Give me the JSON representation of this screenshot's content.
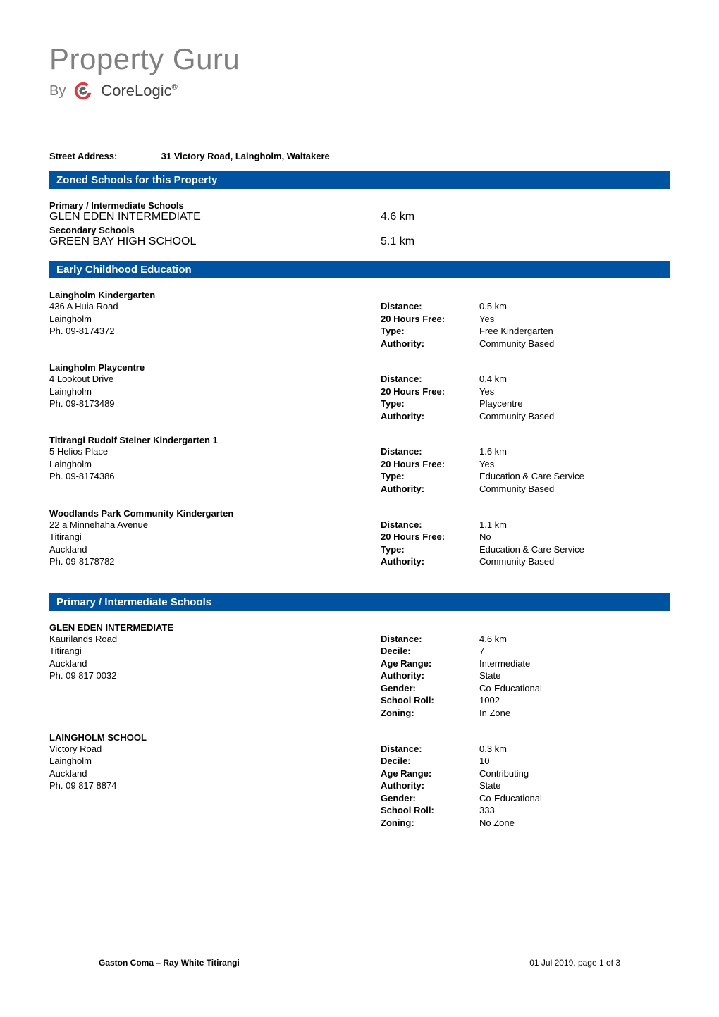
{
  "logo": {
    "main": "Property Guru",
    "by": "By",
    "brand": "CoreLogic",
    "brand_suffix": "®",
    "swirl_colors": {
      "outer": "#e03a3e",
      "inner": "#5d6770"
    }
  },
  "street_address": {
    "label": "Street Address:",
    "value": "31 Victory Road, Laingholm, Waitakere"
  },
  "sections": {
    "zoned": "Zoned Schools for this Property",
    "ece": "Early Childhood Education",
    "primary": "Primary / Intermediate Schools"
  },
  "zoned": {
    "groups": [
      {
        "title": "Primary / Intermediate Schools",
        "rows": [
          {
            "name": "GLEN EDEN INTERMEDIATE",
            "dist": "4.6 km"
          }
        ]
      },
      {
        "title": "Secondary Schools",
        "rows": [
          {
            "name": "GREEN BAY HIGH SCHOOL",
            "dist": "5.1 km"
          }
        ]
      }
    ]
  },
  "ece": [
    {
      "name": "Laingholm Kindergarten",
      "addr": [
        "436 A Huia Road",
        "Laingholm",
        "Ph. 09-8174372"
      ],
      "kv": [
        {
          "k": "Distance:",
          "v": "0.5 km"
        },
        {
          "k": "20 Hours Free:",
          "v": "Yes"
        },
        {
          "k": "Type:",
          "v": "Free Kindergarten"
        },
        {
          "k": "Authority:",
          "v": "Community Based"
        }
      ]
    },
    {
      "name": "Laingholm Playcentre",
      "addr": [
        "4 Lookout Drive",
        "Laingholm",
        "Ph. 09-8173489"
      ],
      "kv": [
        {
          "k": "Distance:",
          "v": "0.4 km"
        },
        {
          "k": "20 Hours Free:",
          "v": "Yes"
        },
        {
          "k": "Type:",
          "v": "Playcentre"
        },
        {
          "k": "Authority:",
          "v": "Community Based"
        }
      ]
    },
    {
      "name": "Titirangi Rudolf Steiner Kindergarten 1",
      "addr": [
        "5 Helios Place",
        "Laingholm",
        "Ph. 09-8174386"
      ],
      "kv": [
        {
          "k": "Distance:",
          "v": "1.6 km"
        },
        {
          "k": "20 Hours Free:",
          "v": "Yes"
        },
        {
          "k": "Type:",
          "v": "Education & Care Service"
        },
        {
          "k": "Authority:",
          "v": "Community Based"
        }
      ]
    },
    {
      "name": "Woodlands Park Community Kindergarten",
      "addr": [
        "22 a Minnehaha Avenue",
        "Titirangi",
        "Auckland",
        "Ph. 09-8178782"
      ],
      "kv": [
        {
          "k": "Distance:",
          "v": "1.1 km"
        },
        {
          "k": "20 Hours Free:",
          "v": "No"
        },
        {
          "k": "Type:",
          "v": "Education & Care Service"
        },
        {
          "k": "Authority:",
          "v": "Community Based"
        }
      ]
    }
  ],
  "primary_schools": [
    {
      "name": "GLEN EDEN INTERMEDIATE",
      "addr": [
        "Kaurilands Road",
        "Titirangi",
        "Auckland",
        "Ph. 09 817 0032"
      ],
      "kv": [
        {
          "k": "Distance:",
          "v": "4.6 km"
        },
        {
          "k": "Decile:",
          "v": "7"
        },
        {
          "k": "Age Range:",
          "v": "Intermediate"
        },
        {
          "k": "Authority:",
          "v": "State"
        },
        {
          "k": "Gender:",
          "v": "Co-Educational"
        },
        {
          "k": "School Roll:",
          "v": "1002"
        },
        {
          "k": "Zoning:",
          "v": "In Zone"
        }
      ]
    },
    {
      "name": "LAINGHOLM SCHOOL",
      "addr": [
        "Victory Road",
        "Laingholm",
        "Auckland",
        "Ph. 09 817 8874"
      ],
      "kv": [
        {
          "k": "Distance:",
          "v": "0.3 km"
        },
        {
          "k": "Decile:",
          "v": "10"
        },
        {
          "k": "Age Range:",
          "v": "Contributing"
        },
        {
          "k": "Authority:",
          "v": "State"
        },
        {
          "k": "Gender:",
          "v": "Co-Educational"
        },
        {
          "k": "School Roll:",
          "v": "333"
        },
        {
          "k": "Zoning:",
          "v": "No Zone"
        }
      ]
    }
  ],
  "footer": {
    "left": "Gaston Coma – Ray White Titirangi",
    "right": "01 Jul 2019, page 1 of 3"
  },
  "colors": {
    "section_bar_bg": "#0053a0",
    "section_bar_fg": "#ffffff",
    "logo_grey": "#808080",
    "text": "#000000"
  }
}
